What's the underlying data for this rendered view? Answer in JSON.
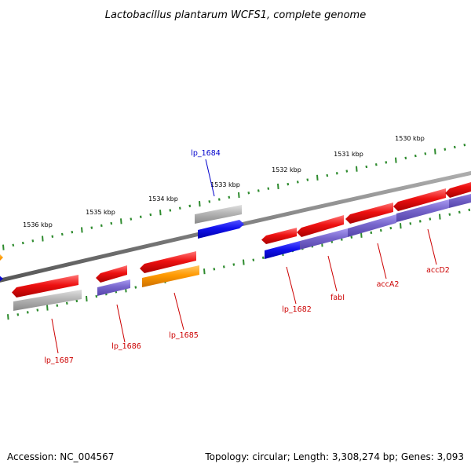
{
  "title": "Lactobacillus plantarum WCFS1, complete genome",
  "accession": "Accession: NC_004567",
  "topology": "Topology: circular; Length: 3,308,274 bp; Genes: 3,093",
  "colors": {
    "backbone": "#808080",
    "tick": "#2e8b2e",
    "gene_red": "#ee1111",
    "gene_blue": "#1111ee",
    "gene_gray": "#b0b0b0",
    "gene_purple": "#7766cc",
    "gene_orange": "#ff9900",
    "label_red": "#cc0000",
    "label_blue": "#0000cc"
  },
  "ticks": {
    "unit": "kbp",
    "labels": [
      "1530 kbp",
      "1531 kbp",
      "1532 kbp",
      "1533 kbp",
      "1534 kbp",
      "1535 kbp",
      "1536 kbp"
    ]
  },
  "genes": [
    {
      "name": "lp_1684",
      "label_color": "label_blue"
    },
    {
      "name": "lp_1687",
      "label_color": "label_red"
    },
    {
      "name": "lp_1686",
      "label_color": "label_red"
    },
    {
      "name": "lp_1685",
      "label_color": "label_red"
    },
    {
      "name": "lp_1682",
      "label_color": "label_red"
    },
    {
      "name": "fabI",
      "label_color": "label_red"
    },
    {
      "name": "accA2",
      "label_color": "label_red"
    },
    {
      "name": "accD2",
      "label_color": "label_red"
    }
  ]
}
